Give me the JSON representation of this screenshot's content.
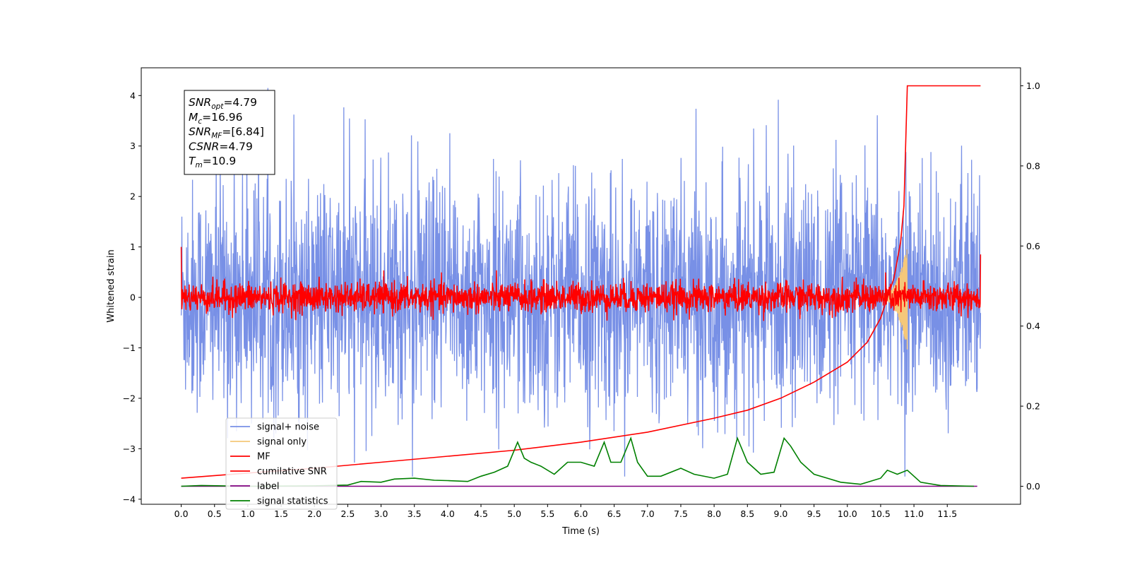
{
  "chart_data": {
    "type": "line",
    "xlabel": "Time (s)",
    "ylabel_left": "Whitened strain",
    "ylabel_right": "",
    "xlim": [
      -0.6,
      12.6
    ],
    "ylim_left": [
      -4.1,
      4.55
    ],
    "ylim_right": [
      -0.045,
      1.045
    ],
    "x_ticks": [
      "0.0",
      "0.5",
      "1.0",
      "1.5",
      "2.0",
      "2.5",
      "3.0",
      "3.5",
      "4.0",
      "4.5",
      "5.0",
      "5.5",
      "6.0",
      "6.5",
      "7.0",
      "7.5",
      "8.0",
      "8.5",
      "9.0",
      "9.5",
      "10.0",
      "10.5",
      "11.0",
      "11.5"
    ],
    "y_ticks_left": [
      -4,
      -3,
      -2,
      -1,
      0,
      1,
      2,
      3,
      4
    ],
    "y_ticks_right": [
      "0.0",
      "0.2",
      "0.4",
      "0.6",
      "0.8",
      "1.0"
    ],
    "grid": false,
    "legend_position": "lower-left",
    "info_box": {
      "lines": [
        {
          "main": "SNR",
          "sub": "opt",
          "value": "=4.79"
        },
        {
          "main": "M",
          "sub": "c",
          "value": "=16.96"
        },
        {
          "main": "SNR",
          "sub": "MF",
          "value": "=[6.84]"
        },
        {
          "main": "CSNR",
          "sub": "",
          "value": "=4.79"
        },
        {
          "main": "T",
          "sub": "m",
          "value": "=10.9"
        }
      ]
    },
    "series": [
      {
        "name": "signal+ noise",
        "axis": "left",
        "color": "#7890e6",
        "kind": "noise",
        "t_start": 0.0,
        "t_end": 12.0,
        "typical_range": [
          -2.3,
          2.3
        ],
        "extreme_range": [
          -3.55,
          4.15
        ]
      },
      {
        "name": "signal only",
        "axis": "left",
        "color": "#f5c87a",
        "kind": "chirp",
        "merger_time": 10.9,
        "peak_amplitude": 1.05
      },
      {
        "name": "MF",
        "axis": "left",
        "color": "#ff0000",
        "kind": "noise",
        "t_start": 0.0,
        "t_end": 12.0,
        "typical_range": [
          -0.3,
          0.3
        ],
        "extreme_range": [
          -0.5,
          1.0
        ]
      },
      {
        "name": "cumilative SNR",
        "axis": "right",
        "color": "#ff0000",
        "x": [
          0.0,
          1.0,
          2.0,
          3.0,
          4.0,
          5.0,
          6.0,
          7.0,
          8.0,
          8.5,
          9.0,
          9.5,
          10.0,
          10.3,
          10.5,
          10.7,
          10.8,
          10.85,
          10.9,
          12.0
        ],
        "values": [
          0.02,
          0.033,
          0.045,
          0.06,
          0.075,
          0.09,
          0.11,
          0.135,
          0.17,
          0.19,
          0.22,
          0.26,
          0.31,
          0.36,
          0.42,
          0.52,
          0.61,
          0.7,
          1.0,
          1.0
        ]
      },
      {
        "name": "label",
        "axis": "right",
        "color": "#800080",
        "x": [
          0.0,
          11.95
        ],
        "values": [
          0.0,
          0.0
        ]
      },
      {
        "name": "signal statistics",
        "axis": "right",
        "color": "#008000",
        "x": [
          0.0,
          0.3,
          1.0,
          2.0,
          2.5,
          2.7,
          3.0,
          3.2,
          3.5,
          3.8,
          4.0,
          4.3,
          4.5,
          4.7,
          4.9,
          5.05,
          5.15,
          5.25,
          5.4,
          5.6,
          5.8,
          6.0,
          6.2,
          6.35,
          6.45,
          6.6,
          6.75,
          6.85,
          7.0,
          7.2,
          7.5,
          7.7,
          8.0,
          8.2,
          8.35,
          8.5,
          8.7,
          8.9,
          9.05,
          9.15,
          9.3,
          9.5,
          9.7,
          9.9,
          10.2,
          10.5,
          10.6,
          10.75,
          10.9,
          11.1,
          11.4,
          11.9
        ],
        "values": [
          0.0,
          0.002,
          0.0,
          0.001,
          0.003,
          0.012,
          0.01,
          0.018,
          0.02,
          0.015,
          0.014,
          0.012,
          0.025,
          0.035,
          0.05,
          0.11,
          0.07,
          0.06,
          0.05,
          0.03,
          0.06,
          0.06,
          0.05,
          0.11,
          0.06,
          0.06,
          0.12,
          0.06,
          0.025,
          0.025,
          0.045,
          0.03,
          0.02,
          0.03,
          0.12,
          0.06,
          0.03,
          0.035,
          0.12,
          0.1,
          0.06,
          0.03,
          0.02,
          0.01,
          0.005,
          0.02,
          0.04,
          0.03,
          0.04,
          0.01,
          0.002,
          0.0
        ]
      }
    ]
  }
}
